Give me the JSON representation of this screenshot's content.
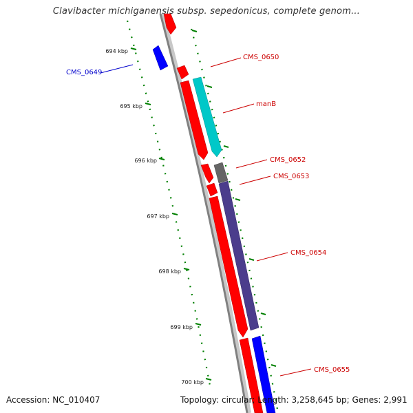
{
  "title": "Clavibacter michiganensis subsp. sepedonicus, complete genom...",
  "accession": "Accession: NC_010407",
  "summary": "Topology: circular; Length: 3,258,645 bp; Genes: 2,991",
  "colors": {
    "backbone": "#808080",
    "forward_gene": "#ff0000",
    "reverse_gene": "#0000ff",
    "tick": "#008000",
    "label_red": "#cc0000",
    "label_blue": "#0000cc",
    "manB": "#00c8c8",
    "CMS_0652": "#666666",
    "CMS_0654": "#4b3d8c",
    "CMS_0655": "#0000ff"
  },
  "ticks": [
    {
      "label": "694 kbp",
      "kbp": 694
    },
    {
      "label": "695 kbp",
      "kbp": 695
    },
    {
      "label": "696 kbp",
      "kbp": 696
    },
    {
      "label": "697 kbp",
      "kbp": 697
    },
    {
      "label": "698 kbp",
      "kbp": 698
    },
    {
      "label": "699 kbp",
      "kbp": 699
    },
    {
      "label": "700 kbp",
      "kbp": 700
    }
  ],
  "genes": [
    {
      "name": "CMS_0649",
      "strand": "-",
      "color": "#0000ff",
      "label_color": "#0000cc",
      "icon": "gene-arrow-icon"
    },
    {
      "name": "CMS_0650",
      "strand": "+",
      "color": "#ff0000",
      "label_color": "#cc0000",
      "icon": "gene-arrow-icon"
    },
    {
      "name": "manB",
      "strand": "+",
      "color": "#00c8c8",
      "label_color": "#cc0000",
      "icon": "gene-arrow-icon"
    },
    {
      "name": "CMS_0652",
      "strand": "+",
      "color": "#666666",
      "label_color": "#cc0000",
      "icon": "gene-arrow-icon"
    },
    {
      "name": "CMS_0653",
      "strand": "+",
      "color": "#ff0000",
      "label_color": "#cc0000",
      "icon": "gene-arrow-icon"
    },
    {
      "name": "CMS_0654",
      "strand": "+",
      "color": "#4b3d8c",
      "label_color": "#cc0000",
      "icon": "gene-arrow-icon"
    },
    {
      "name": "CMS_0655",
      "strand": "+",
      "color": "#0000ff",
      "label_color": "#cc0000",
      "icon": "gene-arrow-icon"
    }
  ]
}
